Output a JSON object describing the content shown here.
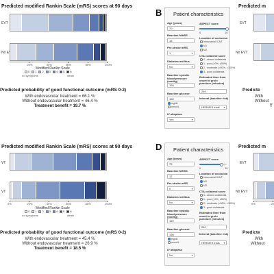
{
  "colors": {
    "mrs": [
      "#e1e6f0",
      "#c3cfe3",
      "#9fb3d5",
      "#7d96c5",
      "#5a78b3",
      "#344f8c",
      "#121e3d"
    ],
    "accent": "#3a7bd5"
  },
  "panel_letters": {
    "B": "B",
    "D": "D"
  },
  "chart_common": {
    "title": "Predicted modified Rankin Scale (mRS) scores at 90 days",
    "axis_title": "Modified Rankin Scale",
    "no_symptoms": "no symptoms",
    "death": "death",
    "legend_labels": [
      "0",
      "1",
      "2",
      "3",
      "4",
      "5",
      "6"
    ],
    "ticks": [
      "0%",
      "20%",
      "40%",
      "60%",
      "80%",
      "100%"
    ]
  },
  "panel_a": {
    "bar1_label": "EVT",
    "bar2_label": "No EVT",
    "outcome_head": "Predicted probability of good functional outcome (mRS 0-2)",
    "with_line": "With endovascular treatment = 66.1 %",
    "without_line": "Without endovascular treatment = 46.4 %",
    "benefit_line": "Treatment benefit = 19.7 %",
    "ticks_visible": [
      "20%",
      "40%",
      "60%",
      "80%",
      "100%"
    ]
  },
  "panel_c": {
    "bar1_label": "VT",
    "bar2_label": "VT",
    "outcome_head": "Predicted probability of good functional outcome (mRS 0-2)",
    "with_line": "With endovascular treatment = 45.4 %",
    "without_line": "Without endovascular treatment = 26.9 %",
    "benefit_line": "Treatment benefit = 18.5 %",
    "ticks_visible": [
      "0%",
      "20%",
      "40%",
      "60%",
      "80%",
      "100%"
    ]
  },
  "panel_b_right": {
    "title": "Predicted m",
    "bar1_label": "EVT",
    "bar2_label": "No EVT",
    "outcome_head": "Predicte",
    "with_line": "With",
    "without_line": "Without",
    "benefit_line": "T"
  },
  "panel_d_right": {
    "title": "Predicted m",
    "bar1_label": "EVT",
    "bar2_label": "No EVT",
    "outcome_head": "Predicte",
    "with_line": "With",
    "without_line": "Without",
    "ticks_visible": [
      "0%",
      "20%",
      "40%"
    ]
  },
  "form_b": {
    "title": "Patient characteristics",
    "age_label": "Age (years)",
    "age_value": "70",
    "nihss_label": "Baseline NIHSS",
    "nihss_value": "15",
    "premrs_label": "Pre-stroke mRS",
    "premrs_value": "1",
    "diabetes_label": "Diabetes mellitus",
    "diabetes_value": "No",
    "sbp_label": "Baseline systolic blood pressure (mmHg)",
    "sbp_value": "150",
    "glucose_label": "Baseline glucose",
    "glucose_value": "150",
    "glucose_unit1": "mg/dL",
    "glucose_unit2": "mmol/L",
    "iva_label": "IV alteplase",
    "iva_value": "Yes",
    "aspect_label": "ASPECT score",
    "aspect_min": "0",
    "aspect_max": "10",
    "location_label": "Location of occlusion",
    "location_options": [
      "Intracranial ICA/T",
      "M1",
      "M2"
    ],
    "cta_label": "CTA collateral score",
    "cta_options": [
      "0 - absent collaterals",
      "1 - poor (>0%, ≤50%)",
      "2 - moderate (>50%, <100%)",
      "3 - good collaterals"
    ],
    "time_label": "Estimated time from onset to groin puncture (minutes)",
    "time_value": "240",
    "interval_label": "Interval (baseline risk)",
    "interval_value": "HERMES trials"
  },
  "form_d": {
    "title": "Patient characteristics",
    "age_label": "Age (years)",
    "age_value": "75",
    "nihss_label": "Baseline NIHSS",
    "nihss_value": "12",
    "premrs_label": "Pre-stroke mRS",
    "premrs_value": "0",
    "diabetes_label": "Diabetes mellitus",
    "diabetes_value": "No",
    "sbp_label": "Baseline systolic blood pressure (mmHg)",
    "sbp_value": "150",
    "glucose_label": "Baseline glucose",
    "glucose_value": "130",
    "glucose_unit1": "mg/dL",
    "glucose_unit2": "mmol/L",
    "iva_label": "IV alteplase",
    "iva_value": "No",
    "aspect_label": "ASPECT score",
    "aspect_min": "0",
    "aspect_max": "10",
    "location_label": "Location of occlusion",
    "location_options": [
      "Intracranial ICA/T",
      "M1",
      "M2"
    ],
    "cta_label": "CTA collateral score",
    "cta_options": [
      "0 - absent collaterals",
      "1 - poor (>0%, ≤50%)",
      "2 - moderate (>50%, <100%)",
      "3 - good collaterals"
    ],
    "time_label": "Estimated time from onset to groin puncture (minutes)",
    "time_value": "240",
    "interval_label": "Interval (baseline risk)",
    "interval_value": "HERMES trials"
  },
  "chart_data": [
    {
      "type": "bar",
      "title": "Predicted modified Rankin Scale (mRS) scores at 90 days",
      "xlabel": "Modified Rankin Scale",
      "orientation": "horizontal-stacked",
      "categories": [
        "EVT",
        "No EVT"
      ],
      "segments": [
        "0",
        "1",
        "2",
        "3",
        "4",
        "5",
        "6"
      ],
      "values": [
        [
          12,
          28,
          26,
          17,
          10,
          4,
          3
        ],
        [
          7,
          20,
          19,
          24,
          17,
          7,
          6
        ]
      ],
      "xlim": [
        0,
        100
      ]
    },
    {
      "type": "bar",
      "title": "Predicted modified Rankin Scale (mRS) scores at 90 days",
      "xlabel": "Modified Rankin Scale",
      "orientation": "horizontal-stacked",
      "categories": [
        "VT",
        "VT"
      ],
      "segments": [
        "0",
        "1",
        "2",
        "3",
        "4",
        "5",
        "6"
      ],
      "values": [
        [
          5,
          17,
          23,
          24,
          17,
          8,
          6
        ],
        [
          3,
          9,
          15,
          25,
          26,
          12,
          10
        ]
      ],
      "xlim": [
        0,
        100
      ]
    }
  ]
}
